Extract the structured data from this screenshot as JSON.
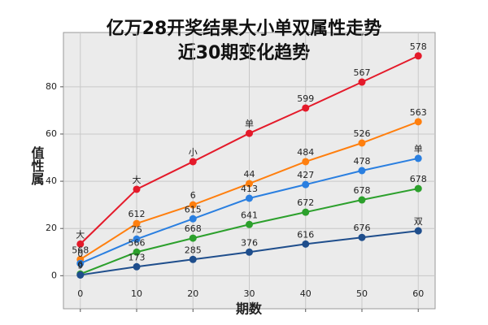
{
  "chart_data": {
    "type": "line",
    "title": "亿万28开奖结果大小单双属性走势",
    "subtitle": "近30期变化趋势",
    "xlabel": "期数",
    "ylabel": "值性属",
    "x": [
      0,
      10,
      20,
      30,
      40,
      50,
      60
    ],
    "xlim": [
      -3,
      63
    ],
    "xticks": [
      0,
      10,
      20,
      30,
      40,
      50,
      60
    ],
    "ylim": [
      -14,
      103
    ],
    "yticks": [
      0,
      20,
      40,
      60,
      80
    ],
    "grid": true,
    "series": [
      {
        "color": "#e41a2a",
        "values": [
          13.4,
          36.6,
          48.3,
          60.3,
          71,
          82,
          93.1
        ],
        "labels": [
          "大",
          "大",
          "小",
          "单",
          "599",
          "567",
          "578"
        ]
      },
      {
        "color": "#ff7f0e",
        "values": [
          6.9,
          22.1,
          30,
          39,
          48.3,
          56.2,
          65.2
        ],
        "labels": [
          "568",
          "612",
          "6",
          "44",
          "484",
          "526",
          "563"
        ]
      },
      {
        "color": "#2a7fe0",
        "values": [
          5.2,
          15.5,
          24.1,
          32.8,
          38.6,
          44.5,
          49.7
        ],
        "labels": [
          "0",
          "75",
          "615",
          "413",
          "427",
          "478",
          "单"
        ]
      },
      {
        "color": "#2ca02c",
        "values": [
          0.7,
          10,
          15.9,
          21.7,
          26.9,
          32.1,
          36.9
        ],
        "labels": [
          "6",
          "566",
          "668",
          "641",
          "672",
          "678",
          "678"
        ]
      },
      {
        "color": "#1f4e8c",
        "values": [
          0.3,
          3.8,
          6.9,
          10,
          13.4,
          16.2,
          19
        ],
        "labels": [
          "9",
          "173",
          "285",
          "376",
          "616",
          "676",
          "双"
        ]
      }
    ]
  }
}
